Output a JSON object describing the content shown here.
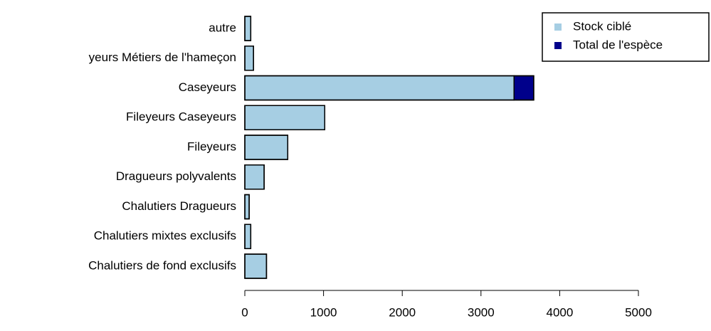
{
  "chart_data": {
    "type": "stacked-barh",
    "categories": [
      "Chalutiers de fond exclusifs",
      "Chalutiers mixtes exclusifs",
      "Chalutiers Dragueurs",
      "Dragueurs polyvalents",
      "Fileyeurs",
      "Fileyeurs Caseyeurs",
      "Caseyeurs",
      "yeurs Métiers de l'hameçon",
      "autre"
    ],
    "series": [
      {
        "name": "Stock ciblé",
        "color": "#a6cee3",
        "values": [
          275,
          75,
          55,
          245,
          545,
          1015,
          3420,
          110,
          75
        ]
      },
      {
        "name": "Total de l'espèce",
        "color": "#00008b",
        "values": [
          0,
          0,
          0,
          0,
          0,
          0,
          250,
          0,
          0
        ]
      }
    ],
    "xlim": [
      0,
      5000
    ],
    "xticks": [
      0,
      1000,
      2000,
      3000,
      4000,
      5000
    ],
    "legend": "top-right"
  }
}
